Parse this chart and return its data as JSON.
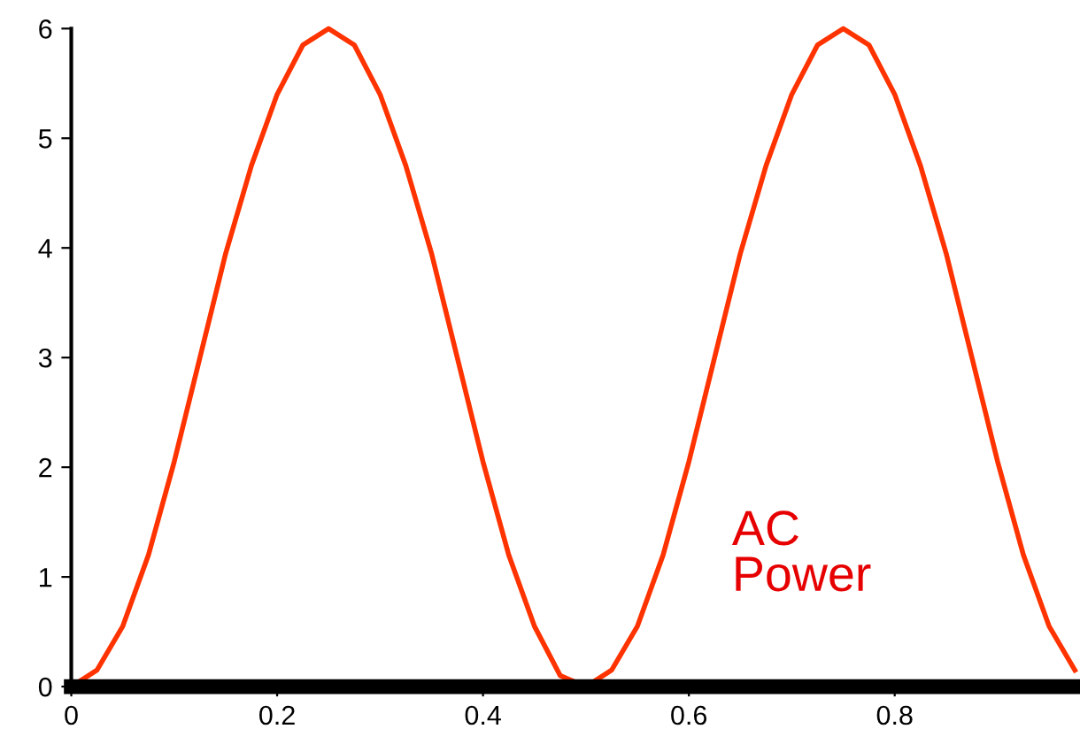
{
  "chart_data": {
    "type": "line",
    "x": [
      0,
      0.025,
      0.05,
      0.075,
      0.1,
      0.125,
      0.15,
      0.175,
      0.2,
      0.225,
      0.25,
      0.275,
      0.3,
      0.325,
      0.35,
      0.375,
      0.4,
      0.425,
      0.45,
      0.475,
      0.5,
      0.525,
      0.55,
      0.575,
      0.6,
      0.625,
      0.65,
      0.675,
      0.7,
      0.725,
      0.75,
      0.775,
      0.8,
      0.825,
      0.85,
      0.875,
      0.9,
      0.925,
      0.95,
      0.975
    ],
    "series": [
      {
        "color": "#ff3300",
        "values": [
          0.0,
          0.15,
          0.55,
          1.2,
          2.05,
          3.0,
          3.95,
          4.75,
          5.4,
          5.85,
          6.0,
          5.85,
          5.4,
          4.75,
          3.95,
          3.0,
          2.05,
          1.2,
          0.55,
          0.1,
          0.0,
          0.15,
          0.55,
          1.2,
          2.05,
          3.0,
          3.95,
          4.75,
          5.4,
          5.85,
          6.0,
          5.85,
          5.4,
          4.75,
          3.95,
          3.0,
          2.05,
          1.2,
          0.55,
          0.15
        ]
      }
    ],
    "annotations": [
      "AC\nPower"
    ],
    "xlim": [
      0,
      0.98
    ],
    "ylim": [
      0,
      6
    ],
    "xticks": [
      0,
      0.2,
      0.4,
      0.6,
      0.8
    ],
    "yticks": [
      0,
      1,
      2,
      3,
      4,
      5,
      6
    ],
    "grid": false,
    "legend": false,
    "marker": "none",
    "line_style": "solid"
  }
}
